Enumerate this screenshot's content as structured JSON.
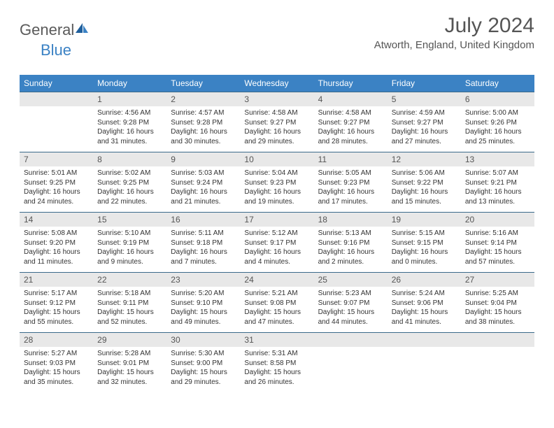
{
  "logo": {
    "general": "General",
    "blue": "Blue"
  },
  "title": "July 2024",
  "location": "Atworth, England, United Kingdom",
  "colors": {
    "header_bg": "#3b82c4",
    "header_text": "#ffffff",
    "daynum_bg": "#e8e8e8",
    "row_border": "#3b6a8a",
    "text": "#333333",
    "title_text": "#555555"
  },
  "weekdays": [
    "Sunday",
    "Monday",
    "Tuesday",
    "Wednesday",
    "Thursday",
    "Friday",
    "Saturday"
  ],
  "weeks": [
    [
      null,
      {
        "n": "1",
        "sunrise": "4:56 AM",
        "sunset": "9:28 PM",
        "daylight_h": 16,
        "daylight_m": 31
      },
      {
        "n": "2",
        "sunrise": "4:57 AM",
        "sunset": "9:28 PM",
        "daylight_h": 16,
        "daylight_m": 30
      },
      {
        "n": "3",
        "sunrise": "4:58 AM",
        "sunset": "9:27 PM",
        "daylight_h": 16,
        "daylight_m": 29
      },
      {
        "n": "4",
        "sunrise": "4:58 AM",
        "sunset": "9:27 PM",
        "daylight_h": 16,
        "daylight_m": 28
      },
      {
        "n": "5",
        "sunrise": "4:59 AM",
        "sunset": "9:27 PM",
        "daylight_h": 16,
        "daylight_m": 27
      },
      {
        "n": "6",
        "sunrise": "5:00 AM",
        "sunset": "9:26 PM",
        "daylight_h": 16,
        "daylight_m": 25
      }
    ],
    [
      {
        "n": "7",
        "sunrise": "5:01 AM",
        "sunset": "9:25 PM",
        "daylight_h": 16,
        "daylight_m": 24
      },
      {
        "n": "8",
        "sunrise": "5:02 AM",
        "sunset": "9:25 PM",
        "daylight_h": 16,
        "daylight_m": 22
      },
      {
        "n": "9",
        "sunrise": "5:03 AM",
        "sunset": "9:24 PM",
        "daylight_h": 16,
        "daylight_m": 21
      },
      {
        "n": "10",
        "sunrise": "5:04 AM",
        "sunset": "9:23 PM",
        "daylight_h": 16,
        "daylight_m": 19
      },
      {
        "n": "11",
        "sunrise": "5:05 AM",
        "sunset": "9:23 PM",
        "daylight_h": 16,
        "daylight_m": 17
      },
      {
        "n": "12",
        "sunrise": "5:06 AM",
        "sunset": "9:22 PM",
        "daylight_h": 16,
        "daylight_m": 15
      },
      {
        "n": "13",
        "sunrise": "5:07 AM",
        "sunset": "9:21 PM",
        "daylight_h": 16,
        "daylight_m": 13
      }
    ],
    [
      {
        "n": "14",
        "sunrise": "5:08 AM",
        "sunset": "9:20 PM",
        "daylight_h": 16,
        "daylight_m": 11
      },
      {
        "n": "15",
        "sunrise": "5:10 AM",
        "sunset": "9:19 PM",
        "daylight_h": 16,
        "daylight_m": 9
      },
      {
        "n": "16",
        "sunrise": "5:11 AM",
        "sunset": "9:18 PM",
        "daylight_h": 16,
        "daylight_m": 7
      },
      {
        "n": "17",
        "sunrise": "5:12 AM",
        "sunset": "9:17 PM",
        "daylight_h": 16,
        "daylight_m": 4
      },
      {
        "n": "18",
        "sunrise": "5:13 AM",
        "sunset": "9:16 PM",
        "daylight_h": 16,
        "daylight_m": 2
      },
      {
        "n": "19",
        "sunrise": "5:15 AM",
        "sunset": "9:15 PM",
        "daylight_h": 16,
        "daylight_m": 0
      },
      {
        "n": "20",
        "sunrise": "5:16 AM",
        "sunset": "9:14 PM",
        "daylight_h": 15,
        "daylight_m": 57
      }
    ],
    [
      {
        "n": "21",
        "sunrise": "5:17 AM",
        "sunset": "9:12 PM",
        "daylight_h": 15,
        "daylight_m": 55
      },
      {
        "n": "22",
        "sunrise": "5:18 AM",
        "sunset": "9:11 PM",
        "daylight_h": 15,
        "daylight_m": 52
      },
      {
        "n": "23",
        "sunrise": "5:20 AM",
        "sunset": "9:10 PM",
        "daylight_h": 15,
        "daylight_m": 49
      },
      {
        "n": "24",
        "sunrise": "5:21 AM",
        "sunset": "9:08 PM",
        "daylight_h": 15,
        "daylight_m": 47
      },
      {
        "n": "25",
        "sunrise": "5:23 AM",
        "sunset": "9:07 PM",
        "daylight_h": 15,
        "daylight_m": 44
      },
      {
        "n": "26",
        "sunrise": "5:24 AM",
        "sunset": "9:06 PM",
        "daylight_h": 15,
        "daylight_m": 41
      },
      {
        "n": "27",
        "sunrise": "5:25 AM",
        "sunset": "9:04 PM",
        "daylight_h": 15,
        "daylight_m": 38
      }
    ],
    [
      {
        "n": "28",
        "sunrise": "5:27 AM",
        "sunset": "9:03 PM",
        "daylight_h": 15,
        "daylight_m": 35
      },
      {
        "n": "29",
        "sunrise": "5:28 AM",
        "sunset": "9:01 PM",
        "daylight_h": 15,
        "daylight_m": 32
      },
      {
        "n": "30",
        "sunrise": "5:30 AM",
        "sunset": "9:00 PM",
        "daylight_h": 15,
        "daylight_m": 29
      },
      {
        "n": "31",
        "sunrise": "5:31 AM",
        "sunset": "8:58 PM",
        "daylight_h": 15,
        "daylight_m": 26
      },
      null,
      null,
      null
    ]
  ],
  "labels": {
    "sunrise": "Sunrise:",
    "sunset": "Sunset:",
    "daylight_prefix": "Daylight:",
    "hours_word": "hours",
    "and_word": "and",
    "minutes_word": "minutes."
  }
}
